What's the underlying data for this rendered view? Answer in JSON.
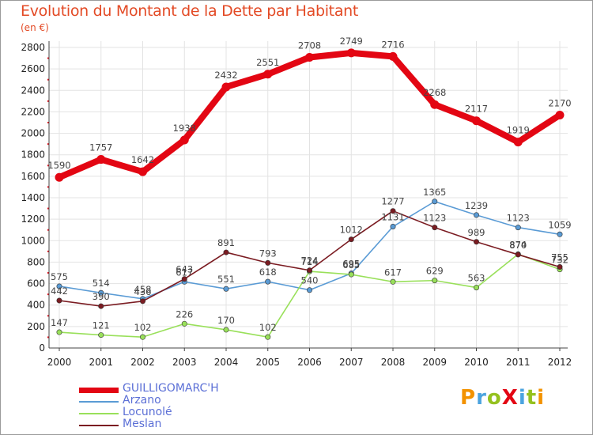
{
  "header": {
    "title": "Evolution du Montant de la Dette par Habitant",
    "subtitle": "(en €)"
  },
  "brand": {
    "text": "ProXiti",
    "colors": [
      "#f39200",
      "#4aa3df",
      "#95c11f",
      "#e30613",
      "#4aa3df",
      "#95c11f",
      "#f39200"
    ]
  },
  "colors": {
    "grid": "#e3e3e3",
    "axis": "#444444",
    "tick_dot": "#e30613",
    "frame": "#9a9a9a"
  },
  "chart_data": {
    "type": "line",
    "title": "Evolution du Montant de la Dette par Habitant",
    "subtitle": "(en €)",
    "xlabel": "",
    "ylabel": "",
    "ylim": [
      0,
      2800
    ],
    "yticks": [
      0,
      200,
      400,
      600,
      800,
      1000,
      1200,
      1400,
      1600,
      1800,
      2000,
      2200,
      2400,
      2600,
      2800
    ],
    "grid": true,
    "x": [
      "2000",
      "2001",
      "2002",
      "2003",
      "2004",
      "2005",
      "2006",
      "2007",
      "2008",
      "2009",
      "2010",
      "2011",
      "2012"
    ],
    "series": [
      {
        "name": "GUILLIGOMARC'H",
        "color": "#e30613",
        "values": [
          1590,
          1757,
          1642,
          1938,
          2432,
          2551,
          2708,
          2749,
          2716,
          2268,
          2117,
          1919,
          2170
        ],
        "labels": [
          "1590",
          "1757",
          "1642",
          "1938",
          "2432",
          "2551",
          "2708",
          "2749",
          "2716",
          "2268",
          "2117",
          "1919",
          "2170"
        ]
      },
      {
        "name": "Arzano",
        "color": "#5a9bd5",
        "values": [
          575,
          514,
          458,
          617,
          551,
          618,
          540,
          695,
          1131,
          1365,
          1239,
          1123,
          1059
        ],
        "labels": [
          "575",
          "514",
          "458",
          "617",
          "551",
          "618",
          "540",
          "695",
          "1131",
          "1365",
          "1239",
          "1123",
          "1059"
        ]
      },
      {
        "name": "Locunolé",
        "color": "#99e05a",
        "values": [
          147,
          121,
          102,
          226,
          170,
          102,
          714,
          685,
          617,
          629,
          563,
          874,
          732
        ],
        "labels": [
          "147",
          "121",
          "102",
          "226",
          "170",
          "102",
          "714",
          "685",
          "617",
          "629",
          "563",
          "874",
          "732"
        ]
      },
      {
        "name": "Meslan",
        "color": "#7b1c22",
        "values": [
          442,
          390,
          436,
          643,
          891,
          793,
          724,
          1012,
          1277,
          1123,
          989,
          870,
          755
        ],
        "labels": [
          "442",
          "390",
          "436",
          "643",
          "891",
          "793",
          "724",
          "1012",
          "1277",
          "1123",
          "989",
          "870",
          "755"
        ]
      }
    ],
    "legend": {
      "position": "bottom-left"
    }
  }
}
